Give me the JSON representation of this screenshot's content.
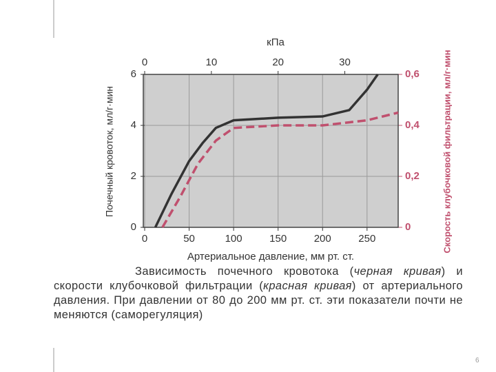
{
  "chart_data": {
    "type": "line",
    "x_label": "Артериальное давление, мм рт. ст.",
    "y_label": "Почечный кровоток, мл/г·мин",
    "y2_label": "Скорость клубочковой фильтрации, мл/г·мин",
    "x2_label": "кПа",
    "xlim": [
      0,
      285
    ],
    "xticks": [
      0,
      50,
      100,
      150,
      200,
      250
    ],
    "x2lim": [
      0,
      38
    ],
    "x2ticks": [
      0,
      10,
      20,
      30
    ],
    "ylim": [
      0,
      6
    ],
    "yticks": [
      0,
      2,
      4,
      6
    ],
    "y2lim": [
      0,
      0.6
    ],
    "y2ticks": [
      {
        "value": 0,
        "label": "0"
      },
      {
        "value": 0.2,
        "label": "0,2"
      },
      {
        "value": 0.4,
        "label": "0,4"
      },
      {
        "value": 0.6,
        "label": "0,6"
      }
    ],
    "grid": true,
    "series": [
      {
        "color": "#333333",
        "x": [
          12,
          30,
          50,
          65,
          80,
          100,
          150,
          200,
          230,
          250,
          262
        ],
        "values": [
          0,
          1.3,
          2.6,
          3.3,
          3.9,
          4.2,
          4.3,
          4.35,
          4.6,
          5.4,
          6
        ]
      },
      {
        "color": "#c0506e",
        "axis": "y2",
        "dashed": true,
        "x": [
          20,
          40,
          60,
          80,
          100,
          150,
          200,
          250,
          285
        ],
        "values": [
          0,
          0.12,
          0.25,
          0.34,
          0.39,
          0.4,
          0.4,
          0.42,
          0.45
        ]
      }
    ],
    "caption": [
      "Зависимость почечного кровотока (",
      "черная кривая",
      ") и скорости клубочковой фильтрации (",
      "красная кривая",
      ") от артериального давления. При давлении от 80 до 200 мм рт. ст. эти показатели почти не меняются (саморегуляция)"
    ]
  },
  "page_number": "6"
}
